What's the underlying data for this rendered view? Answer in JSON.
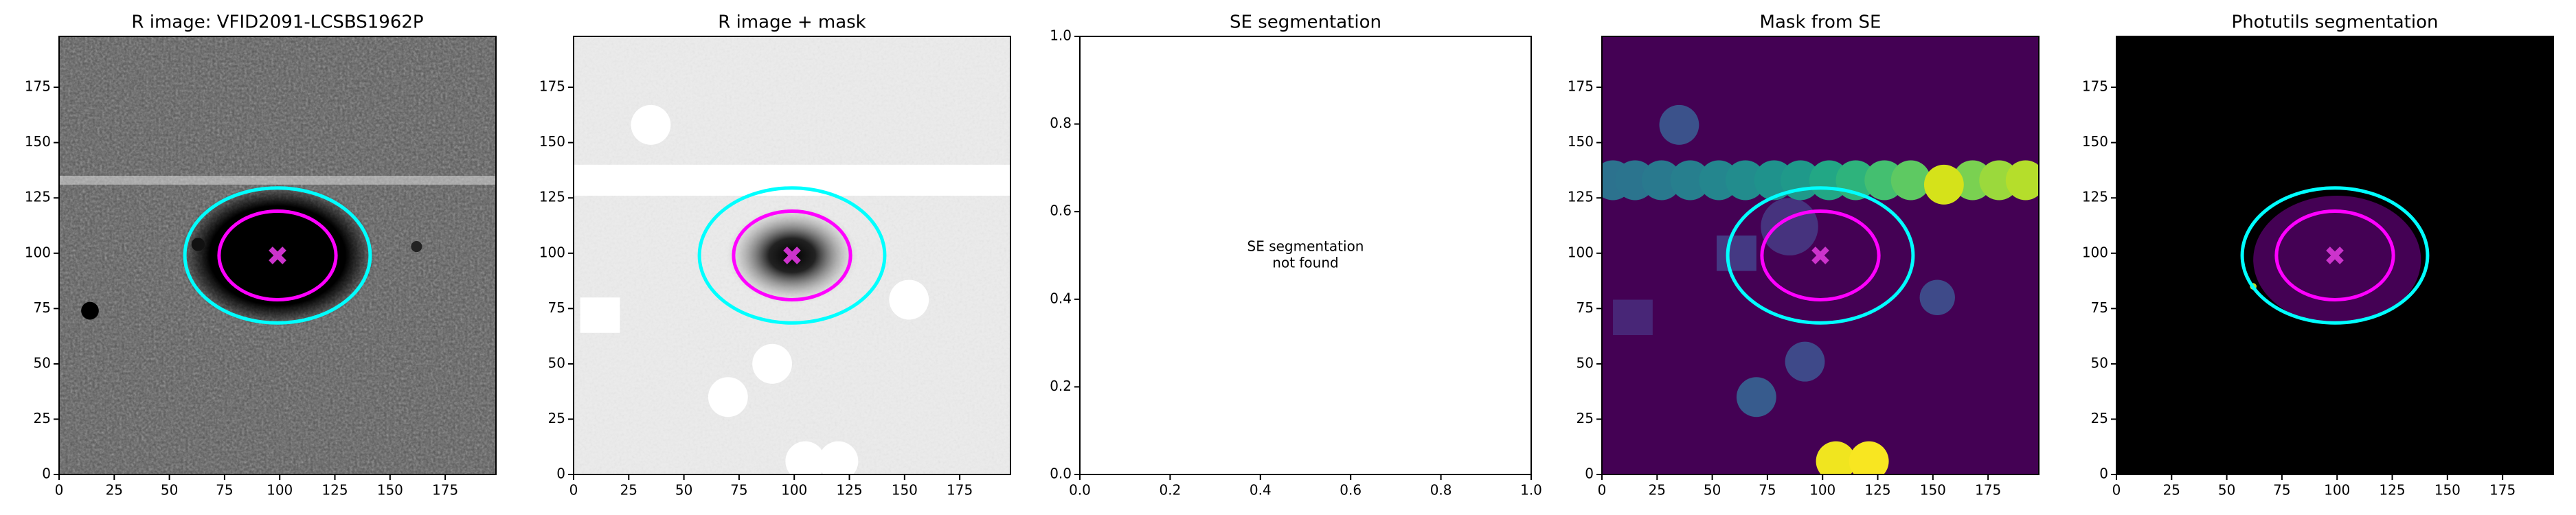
{
  "chart_data": [
    {
      "type": "image",
      "title": "R image: VFID2091-LCSBS1962P",
      "background": "#565656",
      "xlim": [
        0,
        198
      ],
      "ylim": [
        0,
        198
      ],
      "xticks": [
        0,
        25,
        50,
        75,
        100,
        125,
        150,
        175
      ],
      "yticks": [
        0,
        25,
        50,
        75,
        100,
        125,
        150,
        175
      ],
      "ellipses": [
        {
          "color": "#00ffff",
          "center": [
            99,
            99
          ],
          "semi_axes": [
            42,
            30.5
          ]
        },
        {
          "color": "#ff00ff",
          "center": [
            99,
            99
          ],
          "semi_axes": [
            26.5,
            20
          ]
        }
      ],
      "marker": {
        "color": "#cc33cc",
        "x": 99,
        "y": 99
      }
    },
    {
      "type": "image",
      "title": "R image + mask",
      "background": "#ececec",
      "xlim": [
        0,
        198
      ],
      "ylim": [
        0,
        198
      ],
      "xticks": [
        0,
        25,
        50,
        75,
        100,
        125,
        150,
        175
      ],
      "yticks": [
        0,
        25,
        50,
        75,
        100,
        125,
        150,
        175
      ],
      "ellipses": [
        {
          "color": "#00ffff",
          "center": [
            99,
            99
          ],
          "semi_axes": [
            42,
            30.5
          ]
        },
        {
          "color": "#ff00ff",
          "center": [
            99,
            99
          ],
          "semi_axes": [
            26.5,
            20
          ]
        }
      ],
      "marker": {
        "color": "#cc33cc",
        "x": 99,
        "y": 99
      }
    },
    {
      "type": "empty",
      "title": "SE segmentation",
      "background": "#ffffff",
      "xlim": [
        0,
        1
      ],
      "ylim": [
        0,
        1
      ],
      "xticks": [
        {
          "value": 0,
          "label": "0.0"
        },
        0.2,
        0.4,
        0.6,
        0.8,
        {
          "value": 1,
          "label": "1.0"
        }
      ],
      "yticks": [
        {
          "value": 0,
          "label": "0.0"
        },
        0.2,
        0.4,
        0.6,
        0.8,
        {
          "value": 1,
          "label": "1.0"
        }
      ],
      "annotation": [
        "SE segmentation",
        "not found"
      ]
    },
    {
      "type": "image",
      "title": "Mask from SE",
      "background": "#440154",
      "xlim": [
        0,
        198
      ],
      "ylim": [
        0,
        198
      ],
      "xticks": [
        0,
        25,
        50,
        75,
        100,
        125,
        150,
        175
      ],
      "yticks": [
        0,
        25,
        50,
        75,
        100,
        125,
        150,
        175
      ],
      "ellipses": [
        {
          "color": "#00ffff",
          "center": [
            99,
            99
          ],
          "semi_axes": [
            42,
            30.5
          ]
        },
        {
          "color": "#ff00ff",
          "center": [
            99,
            99
          ],
          "semi_axes": [
            26.5,
            20
          ]
        }
      ],
      "marker": {
        "color": "#cc33cc",
        "x": 99,
        "y": 99
      }
    },
    {
      "type": "image",
      "title": "Photutils segmentation",
      "background": "#000000",
      "xlim": [
        0,
        198
      ],
      "ylim": [
        0,
        198
      ],
      "xticks": [
        0,
        25,
        50,
        75,
        100,
        125,
        150,
        175
      ],
      "yticks": [
        0,
        25,
        50,
        75,
        100,
        125,
        150,
        175
      ],
      "ellipses": [
        {
          "color": "#00ffff",
          "center": [
            99,
            99
          ],
          "semi_axes": [
            42,
            30.5
          ]
        },
        {
          "color": "#ff00ff",
          "center": [
            99,
            99
          ],
          "semi_axes": [
            26.5,
            20
          ]
        }
      ],
      "marker": {
        "color": "#cc33cc",
        "x": 99,
        "y": 99
      }
    }
  ]
}
